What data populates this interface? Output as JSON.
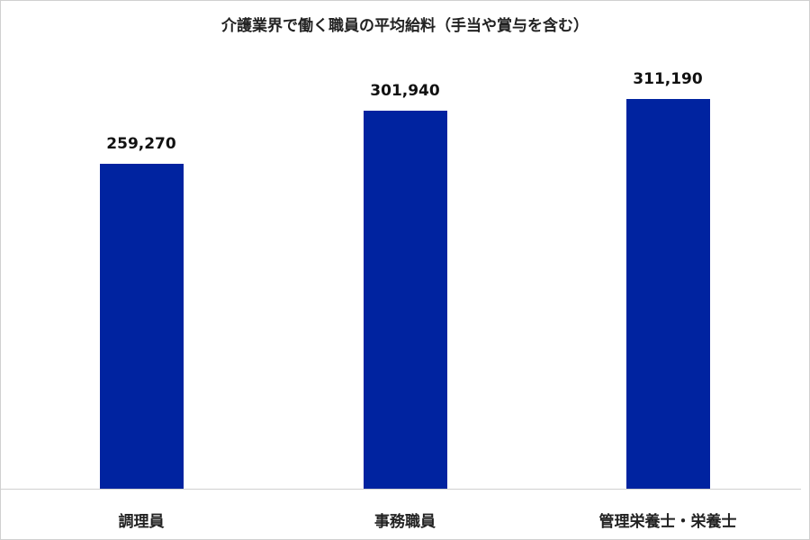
{
  "chart_data": {
    "type": "bar",
    "title": "介護業界で働く職員の平均給料（手当や賞与を含む）",
    "categories": [
      "調理員",
      "事務職員",
      "管理栄養士・栄養士"
    ],
    "values": [
      259270,
      301940,
      311190
    ],
    "value_labels": [
      "259,270",
      "301,940",
      "311,190"
    ],
    "xlabel": "",
    "ylabel": "",
    "ylim": [
      0,
      390000
    ],
    "grid": false,
    "legend": null,
    "bar_color": "#0023a0"
  }
}
